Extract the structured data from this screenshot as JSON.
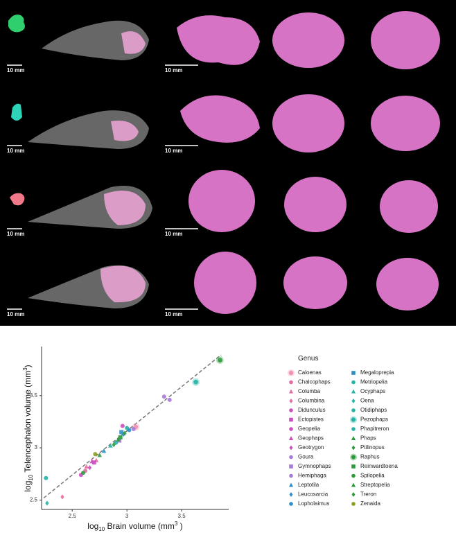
{
  "scale_labels": [
    "10 mm",
    "10 mm",
    "10 mm",
    "10 mm",
    "10 mm",
    "10 mm",
    "10 mm",
    "10 mm"
  ],
  "chart_data": {
    "type": "scatter",
    "xlabel": [
      "log",
      "10",
      " Brain volume (mm",
      "3",
      " )"
    ],
    "ylabel": [
      "log",
      "10",
      " Telencephalon volume (mm",
      "3",
      ")"
    ],
    "legend_title": "Genus",
    "xlim": [
      2.22,
      3.93
    ],
    "ylim": [
      2.41,
      3.97
    ],
    "xticks": [
      2.5,
      3,
      3.5
    ],
    "yticks": [
      2.5,
      3,
      3.5
    ],
    "trendline": {
      "x": [
        2.24,
        3.86
      ],
      "y": [
        2.52,
        3.89
      ],
      "color": "#777777"
    },
    "series": [
      {
        "name": "Caloenas",
        "color": "#f08fb0",
        "marker": "bird",
        "x": [
          3.08
        ],
        "values": [
          3.2
        ]
      },
      {
        "name": "Chalcophaps",
        "color": "#e56ba3",
        "marker": "circle",
        "x": [
          2.62
        ],
        "values": [
          2.78
        ]
      },
      {
        "name": "Columba",
        "color": "#e56ba3",
        "marker": "triangle",
        "x": [
          2.63,
          2.72
        ],
        "values": [
          2.82,
          2.88
        ]
      },
      {
        "name": "Columbina",
        "color": "#e56ba3",
        "marker": "diamond",
        "x": [
          2.41
        ],
        "values": [
          2.53
        ]
      },
      {
        "name": "Didunculus",
        "color": "#c94fbf",
        "marker": "circle",
        "x": [
          2.96
        ],
        "values": [
          3.21
        ]
      },
      {
        "name": "Ectopistes",
        "color": "#c94fbf",
        "marker": "square",
        "x": [
          2.7
        ],
        "values": [
          2.86
        ]
      },
      {
        "name": "Geopelia",
        "color": "#c94fbf",
        "marker": "circle",
        "x": [
          2.58
        ],
        "values": [
          2.74
        ]
      },
      {
        "name": "Geophaps",
        "color": "#c94fbf",
        "marker": "triangle",
        "x": [
          2.68
        ],
        "values": [
          2.87
        ]
      },
      {
        "name": "Geotrygon",
        "color": "#c94fbf",
        "marker": "diamond",
        "x": [
          2.66
        ],
        "values": [
          2.81
        ]
      },
      {
        "name": "Goura",
        "color": "#a57ad8",
        "marker": "circle",
        "x": [
          3.34,
          3.39
        ],
        "values": [
          3.49,
          3.46
        ]
      },
      {
        "name": "Gymnophaps",
        "color": "#a57ad8",
        "marker": "square",
        "x": [
          2.93
        ],
        "values": [
          3.07
        ]
      },
      {
        "name": "Hemiphaga",
        "color": "#a57ad8",
        "marker": "circle",
        "x": [
          3.06
        ],
        "values": [
          3.18
        ]
      },
      {
        "name": "Leptotila",
        "color": "#2b8fc6",
        "marker": "triangle",
        "x": [
          2.79
        ],
        "values": [
          2.97
        ]
      },
      {
        "name": "Leucosarcia",
        "color": "#2b8fc6",
        "marker": "diamond",
        "x": [
          2.97
        ],
        "values": [
          3.13
        ]
      },
      {
        "name": "Lopholaimus",
        "color": "#2b8fc6",
        "marker": "circle",
        "x": [
          3.02
        ],
        "values": [
          3.17
        ]
      },
      {
        "name": "Megaloprepia",
        "color": "#2b8fc6",
        "marker": "square",
        "x": [
          2.95
        ],
        "values": [
          3.15
        ]
      },
      {
        "name": "Metriopelia",
        "color": "#25b3a6",
        "marker": "circle",
        "x": [
          2.26
        ],
        "values": [
          2.71
        ]
      },
      {
        "name": "Ocyphaps",
        "color": "#25b3a6",
        "marker": "triangle",
        "x": [
          2.85
        ],
        "values": [
          3.02
        ]
      },
      {
        "name": "Oena",
        "color": "#25b3a6",
        "marker": "diamond",
        "x": [
          2.27
        ],
        "values": [
          2.47
        ]
      },
      {
        "name": "Otidiphaps",
        "color": "#25b3a6",
        "marker": "circle",
        "x": [
          3.0
        ],
        "values": [
          3.19
        ]
      },
      {
        "name": "Pezophaps",
        "color": "#25b3a6",
        "marker": "bird",
        "x": [
          3.63
        ],
        "values": [
          3.63
        ]
      },
      {
        "name": "Phapitreron",
        "color": "#25b3a6",
        "marker": "circle",
        "x": [
          2.9
        ],
        "values": [
          3.05
        ]
      },
      {
        "name": "Phaps",
        "color": "#2e9a3e",
        "marker": "triangle",
        "x": [
          2.75
        ],
        "values": [
          2.93
        ]
      },
      {
        "name": "Ptilinopus",
        "color": "#2e9a3e",
        "marker": "diamond",
        "x": [
          2.88
        ],
        "values": [
          3.03
        ]
      },
      {
        "name": "Raphus",
        "color": "#2e9a3e",
        "marker": "bird",
        "x": [
          3.85
        ],
        "values": [
          3.84
        ]
      },
      {
        "name": "Reinwardtoena",
        "color": "#2e9a3e",
        "marker": "square",
        "x": [
          2.94
        ],
        "values": [
          3.1
        ]
      },
      {
        "name": "Spilopelia",
        "color": "#2e9a3e",
        "marker": "circle",
        "x": [
          2.6
        ],
        "values": [
          2.76
        ]
      },
      {
        "name": "Streptopelia",
        "color": "#2e9a3e",
        "marker": "triangle",
        "x": [
          2.92
        ],
        "values": [
          3.08
        ]
      },
      {
        "name": "Treron",
        "color": "#2e9a3e",
        "marker": "diamond",
        "x": [
          2.98
        ],
        "values": [
          3.14
        ]
      },
      {
        "name": "Zenaida",
        "color": "#8a9e1e",
        "marker": "circle",
        "x": [
          2.71
        ],
        "values": [
          2.94
        ]
      }
    ]
  }
}
